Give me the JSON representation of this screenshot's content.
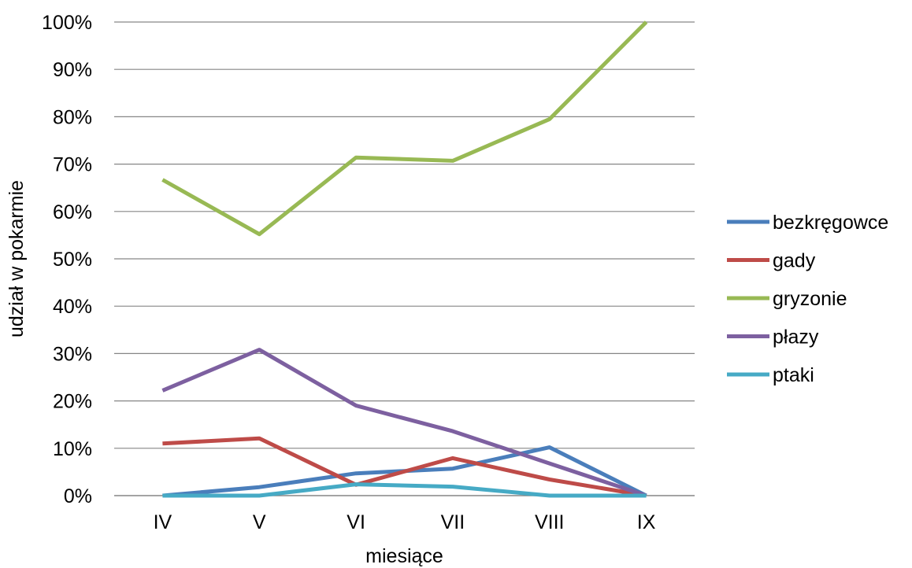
{
  "chart_data": {
    "type": "line",
    "title": "",
    "xlabel": "miesiące",
    "ylabel": "udział w pokarmie",
    "categories": [
      "IV",
      "V",
      "VI",
      "VII",
      "VIII",
      "IX"
    ],
    "ylim": [
      0,
      100
    ],
    "yticks": [
      "0%",
      "10%",
      "20%",
      "30%",
      "40%",
      "50%",
      "60%",
      "70%",
      "80%",
      "90%",
      "100%"
    ],
    "grid": true,
    "legend_position": "right",
    "series": [
      {
        "name": "bezkręgowce",
        "color": "#4a7ebb",
        "values": [
          0,
          1.8,
          4.7,
          5.7,
          10.2,
          0
        ]
      },
      {
        "name": "gady",
        "color": "#be4b48",
        "values": [
          11,
          12.1,
          2.3,
          7.9,
          3.4,
          0
        ]
      },
      {
        "name": "gryzonie",
        "color": "#98b954",
        "values": [
          66.7,
          55.2,
          71.4,
          70.7,
          79.5,
          100
        ]
      },
      {
        "name": "płazy",
        "color": "#7d60a0",
        "values": [
          22.2,
          30.8,
          19,
          13.6,
          6.8,
          0
        ]
      },
      {
        "name": "ptaki",
        "color": "#46aac5",
        "values": [
          0,
          0,
          2.4,
          1.9,
          0,
          0
        ]
      }
    ]
  }
}
